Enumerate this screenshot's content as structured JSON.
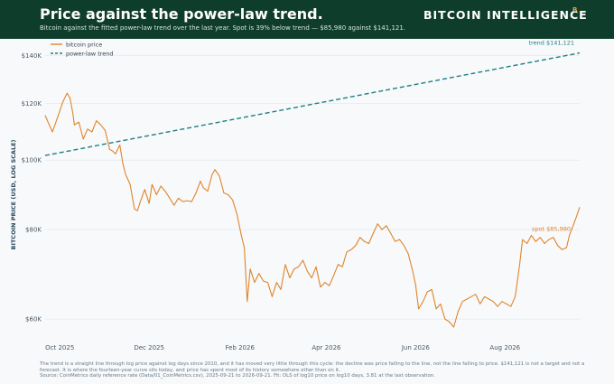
{
  "header": {
    "title": "Price against the power-law trend.",
    "subtitle": "Bitcoin against the fitted power-law trend over the last year. Spot is 39% below trend — $85,980 against $141,121.",
    "brand": "BITCOIN  INTELLIGENCE",
    "brand_mark": "B"
  },
  "footer": {
    "note": "The trend is a straight line through log price against log days since 2010, and it has moved very little through this cycle: the decline was price falling to the line, not the line falling to price. $141,121 is not a target and not a forecast. It is where the fourteen-year curve sits today, and price has spent most of its history somewhere other than on it.",
    "source": "Source: CoinMetrics daily reference rate (Data/01_CoinMetrics.csv), 2025-09-21 to 2026-09-21. Fit: OLS of log10 price on log10 days, 3.81 at the last observation."
  },
  "colors": {
    "header_bg": "#0f3d2c",
    "price": "#e0852a",
    "trend": "#1f7f86",
    "grid": "#e3ecef",
    "axis_text": "#4a5a66",
    "accent": "#f0a23a"
  },
  "chart_data": {
    "type": "line",
    "ylabel": "BITCOIN PRICE (USD, LOG SCALE)",
    "yscale": "log",
    "ylim": [
      56000,
      143000
    ],
    "xlim": [
      "2025-09-21",
      "2026-09-21"
    ],
    "yticks": [
      {
        "value": 60000,
        "label": "$60K"
      },
      {
        "value": 80000,
        "label": "$80K"
      },
      {
        "value": 100000,
        "label": "$100K"
      },
      {
        "value": 120000,
        "label": "$120K"
      },
      {
        "value": 140000,
        "label": "$140K"
      }
    ],
    "xticks": [
      {
        "date": "2025-10-01",
        "label": "Oct 2025"
      },
      {
        "date": "2025-12-01",
        "label": "Dec 2025"
      },
      {
        "date": "2026-02-01",
        "label": "Feb 2026"
      },
      {
        "date": "2026-04-01",
        "label": "Apr 2026"
      },
      {
        "date": "2026-06-01",
        "label": "Jun 2026"
      },
      {
        "date": "2026-08-01",
        "label": "Aug 2026"
      }
    ],
    "legend": {
      "position": "top-left"
    },
    "grid": "horizontal",
    "series": [
      {
        "name": "bitcoin price",
        "style": "solid",
        "points": [
          [
            "2025-09-21",
            115500
          ],
          [
            "2025-09-23",
            113000
          ],
          [
            "2025-09-26",
            109500
          ],
          [
            "2025-09-29",
            114000
          ],
          [
            "2025-10-01",
            117000
          ],
          [
            "2025-10-03",
            120500
          ],
          [
            "2025-10-06",
            124000
          ],
          [
            "2025-10-08",
            122000
          ],
          [
            "2025-10-10",
            116000
          ],
          [
            "2025-10-11",
            112000
          ],
          [
            "2025-10-14",
            113000
          ],
          [
            "2025-10-17",
            107000
          ],
          [
            "2025-10-20",
            110500
          ],
          [
            "2025-10-23",
            109500
          ],
          [
            "2025-10-26",
            113500
          ],
          [
            "2025-10-29",
            112000
          ],
          [
            "2025-11-01",
            110000
          ],
          [
            "2025-11-04",
            103500
          ],
          [
            "2025-11-06",
            103000
          ],
          [
            "2025-11-08",
            102000
          ],
          [
            "2025-11-11",
            105000
          ],
          [
            "2025-11-13",
            99000
          ],
          [
            "2025-11-15",
            95500
          ],
          [
            "2025-11-18",
            92500
          ],
          [
            "2025-11-21",
            85500
          ],
          [
            "2025-11-23",
            85000
          ],
          [
            "2025-11-25",
            87500
          ],
          [
            "2025-11-28",
            91000
          ],
          [
            "2025-12-01",
            87000
          ],
          [
            "2025-12-03",
            92500
          ],
          [
            "2025-12-06",
            89500
          ],
          [
            "2025-12-09",
            92000
          ],
          [
            "2025-12-12",
            90500
          ],
          [
            "2025-12-15",
            88500
          ],
          [
            "2025-12-18",
            86500
          ],
          [
            "2025-12-21",
            88500
          ],
          [
            "2025-12-24",
            87500
          ],
          [
            "2025-12-27",
            87800
          ],
          [
            "2025-12-30",
            87500
          ],
          [
            "2026-01-02",
            90000
          ],
          [
            "2026-01-05",
            93500
          ],
          [
            "2026-01-07",
            91500
          ],
          [
            "2026-01-10",
            90500
          ],
          [
            "2026-01-13",
            95500
          ],
          [
            "2026-01-15",
            97000
          ],
          [
            "2026-01-18",
            95000
          ],
          [
            "2026-01-21",
            90000
          ],
          [
            "2026-01-24",
            89500
          ],
          [
            "2026-01-27",
            88000
          ],
          [
            "2026-01-30",
            84000
          ],
          [
            "2026-02-02",
            78500
          ],
          [
            "2026-02-04",
            75500
          ],
          [
            "2026-02-06",
            63500
          ],
          [
            "2026-02-08",
            70500
          ],
          [
            "2026-02-11",
            67500
          ],
          [
            "2026-02-14",
            69500
          ],
          [
            "2026-02-17",
            67800
          ],
          [
            "2026-02-20",
            67500
          ],
          [
            "2026-02-23",
            64500
          ],
          [
            "2026-02-26",
            67500
          ],
          [
            "2026-03-01",
            66000
          ],
          [
            "2026-03-04",
            71500
          ],
          [
            "2026-03-07",
            68500
          ],
          [
            "2026-03-10",
            70500
          ],
          [
            "2026-03-13",
            71000
          ],
          [
            "2026-03-16",
            72500
          ],
          [
            "2026-03-19",
            70000
          ],
          [
            "2026-03-22",
            68500
          ],
          [
            "2026-03-25",
            71000
          ],
          [
            "2026-03-28",
            66500
          ],
          [
            "2026-03-31",
            67500
          ],
          [
            "2026-04-03",
            66800
          ],
          [
            "2026-04-06",
            69000
          ],
          [
            "2026-04-09",
            71500
          ],
          [
            "2026-04-12",
            71000
          ],
          [
            "2026-04-15",
            74500
          ],
          [
            "2026-04-18",
            75000
          ],
          [
            "2026-04-21",
            76000
          ],
          [
            "2026-04-24",
            78000
          ],
          [
            "2026-04-27",
            77000
          ],
          [
            "2026-04-30",
            76500
          ],
          [
            "2026-05-03",
            79000
          ],
          [
            "2026-05-06",
            81500
          ],
          [
            "2026-05-09",
            80000
          ],
          [
            "2026-05-12",
            81000
          ],
          [
            "2026-05-15",
            79000
          ],
          [
            "2026-05-18",
            77000
          ],
          [
            "2026-05-21",
            77500
          ],
          [
            "2026-05-24",
            76000
          ],
          [
            "2026-05-27",
            74000
          ],
          [
            "2026-05-30",
            70000
          ],
          [
            "2026-06-01",
            67000
          ],
          [
            "2026-06-03",
            62000
          ],
          [
            "2026-06-06",
            63500
          ],
          [
            "2026-06-09",
            65500
          ],
          [
            "2026-06-12",
            66000
          ],
          [
            "2026-06-15",
            62000
          ],
          [
            "2026-06-18",
            63000
          ],
          [
            "2026-06-21",
            60000
          ],
          [
            "2026-06-24",
            59500
          ],
          [
            "2026-06-27",
            58500
          ],
          [
            "2026-06-30",
            61500
          ],
          [
            "2026-07-03",
            63500
          ],
          [
            "2026-07-06",
            64000
          ],
          [
            "2026-07-09",
            64500
          ],
          [
            "2026-07-12",
            65000
          ],
          [
            "2026-07-15",
            63000
          ],
          [
            "2026-07-18",
            64500
          ],
          [
            "2026-07-21",
            64000
          ],
          [
            "2026-07-24",
            63500
          ],
          [
            "2026-07-27",
            62500
          ],
          [
            "2026-07-30",
            63500
          ],
          [
            "2026-08-02",
            63000
          ],
          [
            "2026-08-05",
            62500
          ],
          [
            "2026-08-08",
            64500
          ],
          [
            "2026-08-11",
            71500
          ],
          [
            "2026-08-13",
            77500
          ],
          [
            "2026-08-16",
            76500
          ],
          [
            "2026-08-19",
            78500
          ],
          [
            "2026-08-22",
            77000
          ],
          [
            "2026-08-25",
            78000
          ],
          [
            "2026-08-28",
            76500
          ],
          [
            "2026-08-31",
            77500
          ],
          [
            "2026-09-03",
            78000
          ],
          [
            "2026-09-06",
            76000
          ],
          [
            "2026-09-09",
            75000
          ],
          [
            "2026-09-12",
            75500
          ],
          [
            "2026-09-14",
            78500
          ],
          [
            "2026-09-16",
            80500
          ],
          [
            "2026-09-18",
            82500
          ],
          [
            "2026-09-21",
            85980
          ]
        ]
      },
      {
        "name": "power-law trend",
        "style": "dashed",
        "points": [
          [
            "2025-09-21",
            101500
          ],
          [
            "2026-09-21",
            141121
          ]
        ]
      }
    ],
    "annotations": [
      {
        "text": "trend $141,121",
        "series": "power-law trend"
      },
      {
        "text": "spot $85,980",
        "series": "bitcoin price"
      }
    ]
  }
}
